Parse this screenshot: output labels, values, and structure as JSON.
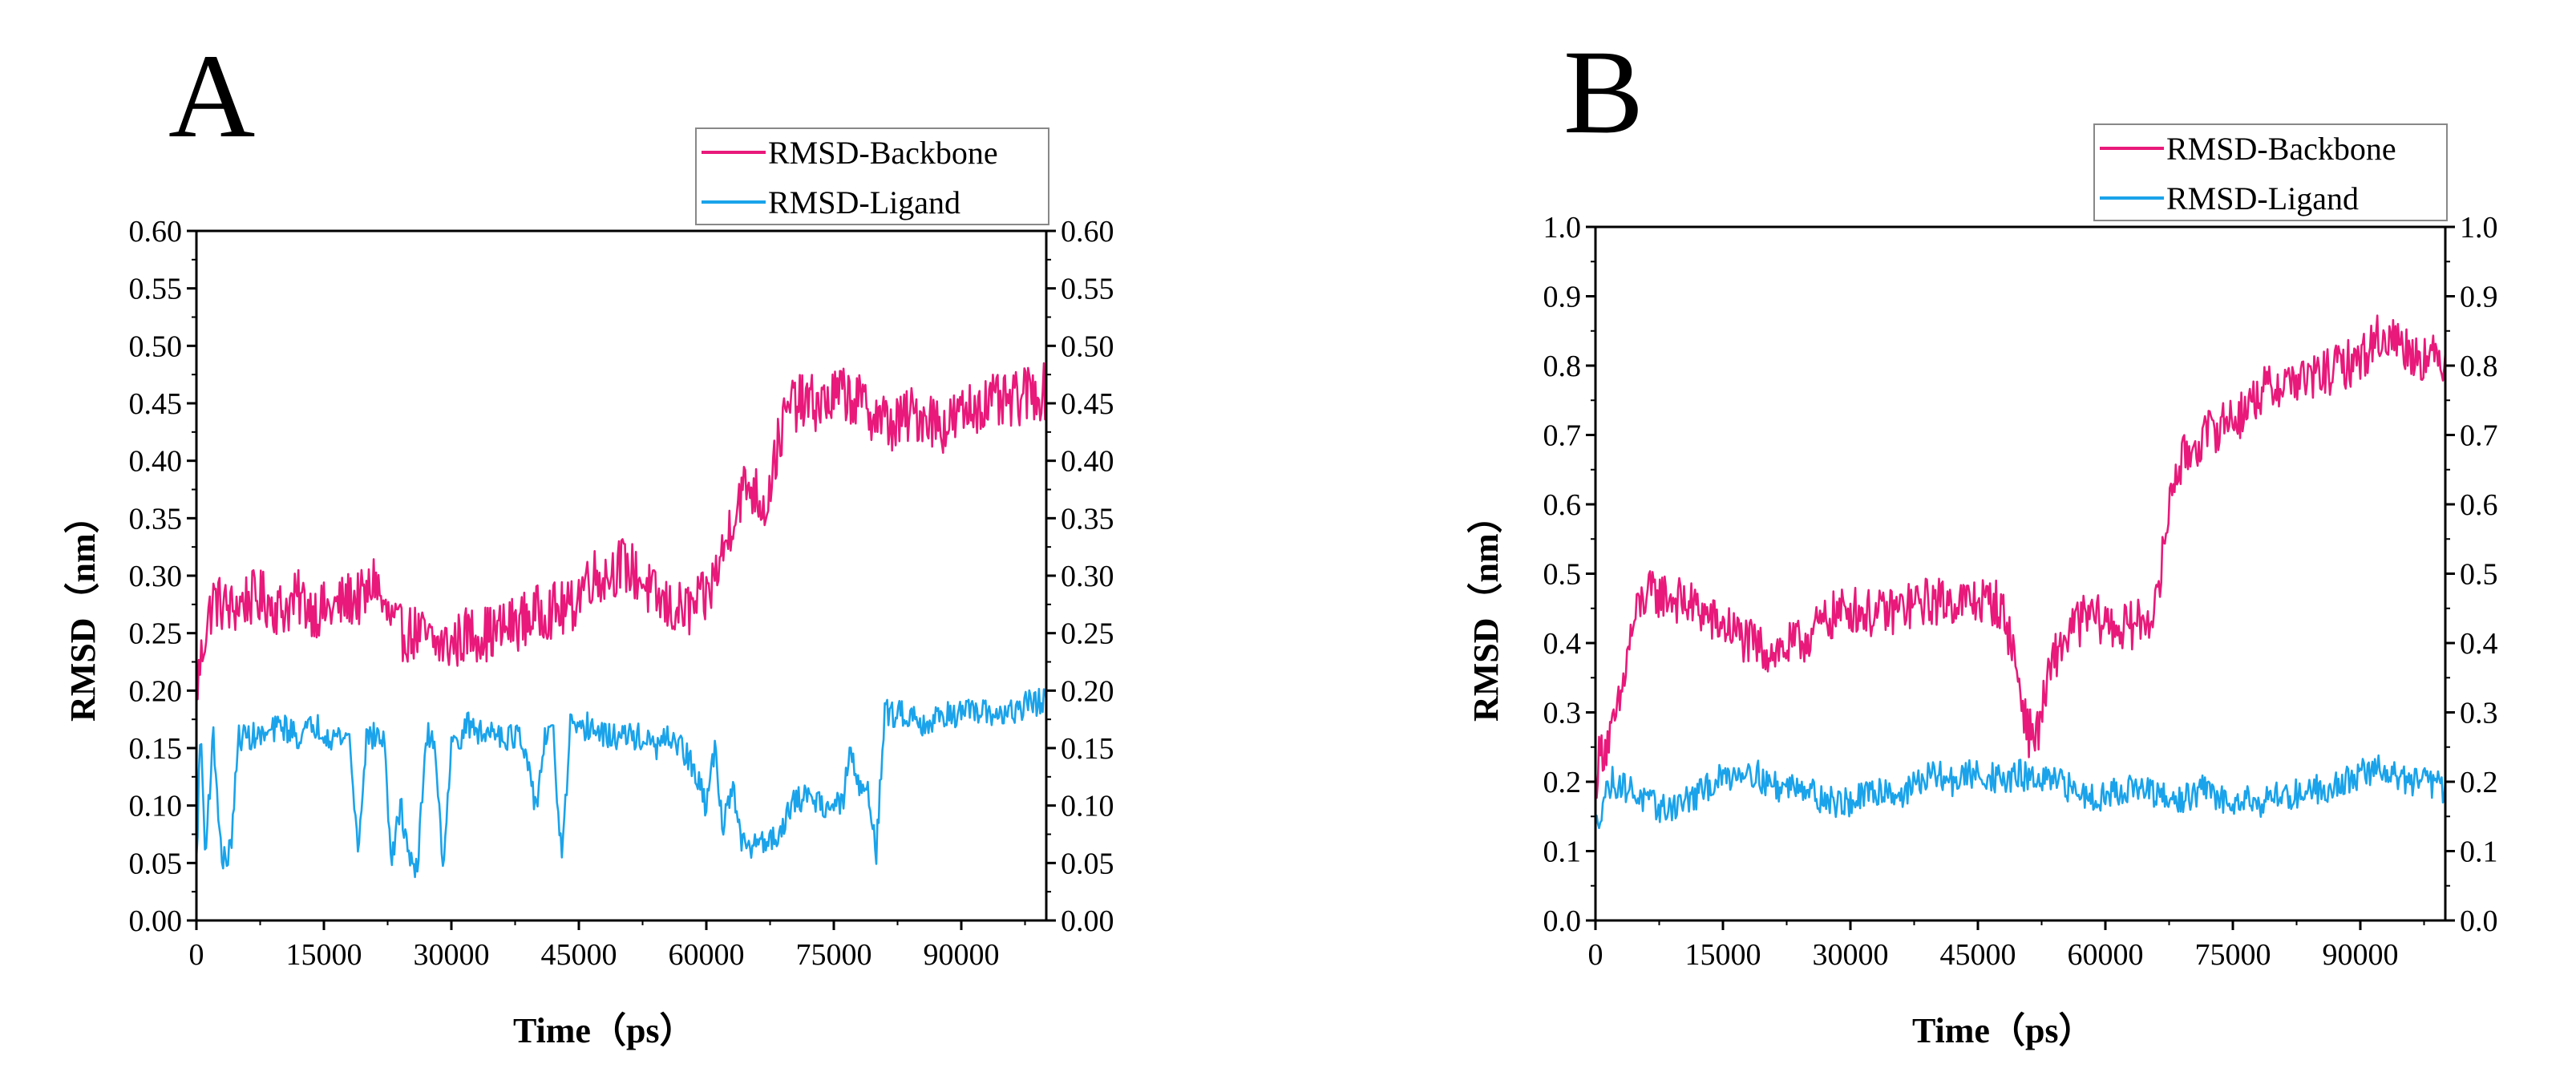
{
  "figure": {
    "panels": [
      "A",
      "B"
    ]
  },
  "colors": {
    "backbone": "#e8197a",
    "ligand": "#1aa3ea",
    "axis": "#000000"
  },
  "chart_data": [
    {
      "type": "line",
      "panel_label": "A",
      "xlabel": "Time（ps）",
      "ylabel": "RMSD（nm）",
      "xlim": [
        0,
        100000
      ],
      "ylim": [
        0.0,
        0.6
      ],
      "xticks": [
        0,
        15000,
        30000,
        45000,
        60000,
        75000,
        90000
      ],
      "xtick_labels": [
        "0",
        "15000",
        "30000",
        "45000",
        "60000",
        "75000",
        "90000"
      ],
      "yticks": [
        0.0,
        0.05,
        0.1,
        0.15,
        0.2,
        0.25,
        0.3,
        0.35,
        0.4,
        0.45,
        0.5,
        0.55,
        0.6
      ],
      "ytick_labels": [
        "0.00",
        "0.05",
        "0.10",
        "0.15",
        "0.20",
        "0.25",
        "0.30",
        "0.35",
        "0.40",
        "0.45",
        "0.50",
        "0.55",
        "0.60"
      ],
      "legend": [
        "RMSD-Backbone",
        "RMSD-Ligand"
      ],
      "legend_position": "top-right",
      "series": [
        {
          "name": "RMSD-Backbone",
          "color": "#e8197a",
          "noise": 0.025,
          "x": [
            0,
            1000,
            2000,
            4000,
            6000,
            8000,
            10000,
            12000,
            14000,
            16000,
            18000,
            20000,
            21000,
            22000,
            23000,
            24000,
            26000,
            28000,
            30000,
            32000,
            35000,
            38000,
            41000,
            44000,
            46000,
            48000,
            50000,
            52000,
            54000,
            56000,
            58000,
            60000,
            61000,
            62000,
            63000,
            64000,
            65000,
            66000,
            67000,
            68000,
            69000,
            70000,
            72000,
            74000,
            76000,
            78000,
            80000,
            82000,
            84000,
            86000,
            88000,
            90000,
            92000,
            94000,
            96000,
            98000,
            100000
          ],
          "y": [
            0.2,
            0.25,
            0.28,
            0.27,
            0.28,
            0.28,
            0.27,
            0.28,
            0.27,
            0.27,
            0.28,
            0.28,
            0.3,
            0.27,
            0.26,
            0.25,
            0.25,
            0.24,
            0.24,
            0.25,
            0.25,
            0.26,
            0.27,
            0.27,
            0.3,
            0.3,
            0.31,
            0.3,
            0.28,
            0.27,
            0.27,
            0.28,
            0.3,
            0.32,
            0.35,
            0.37,
            0.38,
            0.37,
            0.36,
            0.4,
            0.43,
            0.45,
            0.45,
            0.45,
            0.46,
            0.45,
            0.44,
            0.43,
            0.44,
            0.44,
            0.43,
            0.44,
            0.45,
            0.45,
            0.45,
            0.46,
            0.46
          ]
        },
        {
          "name": "RMSD-Ligand",
          "color": "#1aa3ea",
          "noise": 0.012,
          "x": [
            0,
            500,
            1000,
            2000,
            3000,
            4000,
            5000,
            6000,
            8000,
            10000,
            12000,
            14000,
            16000,
            18000,
            19000,
            20000,
            21000,
            22000,
            23000,
            24000,
            25000,
            26000,
            27000,
            28000,
            29000,
            30000,
            31000,
            32000,
            34000,
            35000,
            36000,
            38000,
            40000,
            41000,
            42000,
            43000,
            44000,
            45000,
            46000,
            48000,
            50000,
            52000,
            54000,
            56000,
            58000,
            60000,
            61000,
            62000,
            63000,
            64000,
            65000,
            66000,
            68000,
            70000,
            72000,
            74000,
            76000,
            77000,
            78000,
            79000,
            80000,
            81000,
            82000,
            83000,
            84000,
            86000,
            88000,
            90000,
            92000,
            94000,
            96000,
            98000,
            100000
          ],
          "y": [
            0.05,
            0.17,
            0.06,
            0.16,
            0.05,
            0.06,
            0.16,
            0.16,
            0.16,
            0.17,
            0.16,
            0.17,
            0.16,
            0.16,
            0.06,
            0.16,
            0.16,
            0.16,
            0.05,
            0.1,
            0.06,
            0.04,
            0.16,
            0.16,
            0.05,
            0.15,
            0.16,
            0.17,
            0.16,
            0.17,
            0.16,
            0.16,
            0.1,
            0.16,
            0.16,
            0.05,
            0.17,
            0.16,
            0.17,
            0.16,
            0.16,
            0.16,
            0.15,
            0.16,
            0.14,
            0.1,
            0.15,
            0.08,
            0.12,
            0.07,
            0.06,
            0.07,
            0.07,
            0.1,
            0.11,
            0.1,
            0.1,
            0.15,
            0.11,
            0.12,
            0.06,
            0.18,
            0.18,
            0.18,
            0.18,
            0.17,
            0.18,
            0.18,
            0.18,
            0.18,
            0.18,
            0.19,
            0.19
          ]
        }
      ]
    },
    {
      "type": "line",
      "panel_label": "B",
      "xlabel": "Time（ps）",
      "ylabel": "RMSD（nm）",
      "xlim": [
        0,
        100000
      ],
      "ylim": [
        0.0,
        1.0
      ],
      "xticks": [
        0,
        15000,
        30000,
        45000,
        60000,
        75000,
        90000
      ],
      "xtick_labels": [
        "0",
        "15000",
        "30000",
        "45000",
        "60000",
        "75000",
        "90000"
      ],
      "yticks": [
        0.0,
        0.1,
        0.2,
        0.3,
        0.4,
        0.5,
        0.6,
        0.7,
        0.8,
        0.9,
        1.0
      ],
      "ytick_labels": [
        "0.0",
        "0.1",
        "0.2",
        "0.3",
        "0.4",
        "0.5",
        "0.6",
        "0.7",
        "0.8",
        "0.9",
        "1.0"
      ],
      "legend": [
        "RMSD-Backbone",
        "RMSD-Ligand"
      ],
      "legend_position": "top-right",
      "series": [
        {
          "name": "RMSD-Backbone",
          "color": "#e8197a",
          "noise": 0.035,
          "x": [
            0,
            500,
            1000,
            2000,
            3000,
            4000,
            5000,
            6000,
            8000,
            10000,
            12000,
            14000,
            16000,
            18000,
            20000,
            22000,
            24000,
            26000,
            28000,
            30000,
            33000,
            36000,
            39000,
            42000,
            45000,
            47000,
            48000,
            49000,
            50000,
            51000,
            52000,
            53000,
            54000,
            56000,
            58000,
            60000,
            62000,
            64000,
            66000,
            67000,
            68000,
            70000,
            72000,
            74000,
            76000,
            78000,
            80000,
            82000,
            84000,
            86000,
            88000,
            90000,
            92000,
            94000,
            96000,
            98000,
            100000
          ],
          "y": [
            0.2,
            0.24,
            0.25,
            0.27,
            0.32,
            0.4,
            0.45,
            0.47,
            0.47,
            0.46,
            0.45,
            0.43,
            0.42,
            0.4,
            0.39,
            0.39,
            0.4,
            0.42,
            0.44,
            0.45,
            0.44,
            0.45,
            0.46,
            0.46,
            0.46,
            0.46,
            0.44,
            0.4,
            0.33,
            0.27,
            0.27,
            0.33,
            0.38,
            0.42,
            0.44,
            0.43,
            0.42,
            0.43,
            0.45,
            0.55,
            0.64,
            0.68,
            0.7,
            0.72,
            0.73,
            0.76,
            0.77,
            0.78,
            0.78,
            0.79,
            0.8,
            0.81,
            0.84,
            0.84,
            0.82,
            0.81,
            0.81
          ]
        },
        {
          "name": "RMSD-Ligand",
          "color": "#1aa3ea",
          "noise": 0.022,
          "x": [
            0,
            1000,
            2000,
            4000,
            6000,
            8000,
            10000,
            12000,
            14000,
            16000,
            18000,
            20000,
            22000,
            24000,
            26000,
            28000,
            30000,
            32000,
            34000,
            36000,
            38000,
            40000,
            42000,
            44000,
            46000,
            48000,
            50000,
            52000,
            54000,
            56000,
            58000,
            60000,
            62000,
            64000,
            66000,
            68000,
            70000,
            72000,
            74000,
            76000,
            78000,
            80000,
            82000,
            84000,
            86000,
            88000,
            90000,
            92000,
            94000,
            96000,
            98000,
            100000
          ],
          "y": [
            0.13,
            0.18,
            0.2,
            0.19,
            0.17,
            0.16,
            0.17,
            0.18,
            0.2,
            0.21,
            0.22,
            0.2,
            0.19,
            0.2,
            0.18,
            0.17,
            0.17,
            0.18,
            0.19,
            0.18,
            0.2,
            0.21,
            0.2,
            0.21,
            0.21,
            0.2,
            0.21,
            0.2,
            0.2,
            0.19,
            0.18,
            0.18,
            0.19,
            0.19,
            0.18,
            0.17,
            0.18,
            0.19,
            0.17,
            0.18,
            0.17,
            0.18,
            0.18,
            0.19,
            0.19,
            0.2,
            0.21,
            0.22,
            0.21,
            0.2,
            0.2,
            0.19
          ]
        }
      ]
    }
  ]
}
